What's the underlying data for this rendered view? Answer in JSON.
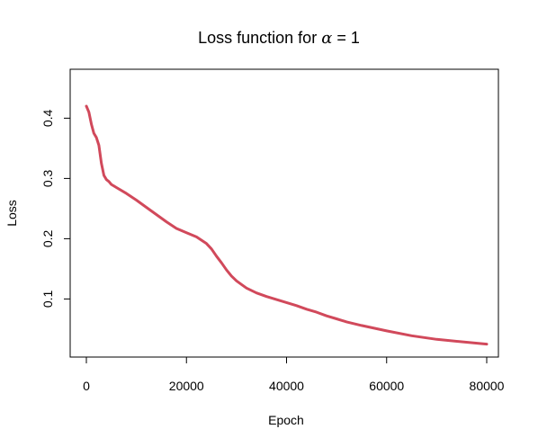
{
  "chart_data": {
    "type": "line",
    "title": "Loss function for",
    "title_symbol": "α",
    "title_suffix": " = 1",
    "xlabel": "Epoch",
    "ylabel": "Loss",
    "xlim": [
      0,
      80000
    ],
    "ylim": [
      0.02,
      0.42
    ],
    "x_ticks": [
      0,
      20000,
      40000,
      60000,
      80000
    ],
    "x_tick_labels": [
      "0",
      "20000",
      "40000",
      "60000",
      "80000"
    ],
    "y_ticks": [
      0.1,
      0.2,
      0.3,
      0.4
    ],
    "y_tick_labels": [
      "0.1",
      "0.2",
      "0.3",
      "0.4"
    ],
    "grid": false,
    "line_color": "#D1495B",
    "series": [
      {
        "x": [
          0,
          500,
          1000,
          1500,
          2000,
          2500,
          3000,
          3500,
          4000,
          4500,
          5000,
          6000,
          8000,
          10000,
          12000,
          14000,
          16000,
          18000,
          20000,
          22000,
          24000,
          25000,
          26000,
          27000,
          28000,
          29000,
          30000,
          31000,
          32000,
          34000,
          36000,
          38000,
          40000,
          42000,
          44000,
          46000,
          48000,
          50000,
          52000,
          55000,
          60000,
          65000,
          70000,
          75000,
          80000
        ],
        "y": [
          0.42,
          0.41,
          0.39,
          0.375,
          0.368,
          0.355,
          0.325,
          0.305,
          0.298,
          0.295,
          0.29,
          0.285,
          0.275,
          0.264,
          0.252,
          0.24,
          0.228,
          0.217,
          0.21,
          0.203,
          0.192,
          0.183,
          0.171,
          0.16,
          0.148,
          0.138,
          0.13,
          0.124,
          0.118,
          0.11,
          0.104,
          0.099,
          0.094,
          0.089,
          0.083,
          0.078,
          0.072,
          0.067,
          0.062,
          0.056,
          0.047,
          0.039,
          0.033,
          0.029,
          0.025
        ]
      }
    ]
  }
}
